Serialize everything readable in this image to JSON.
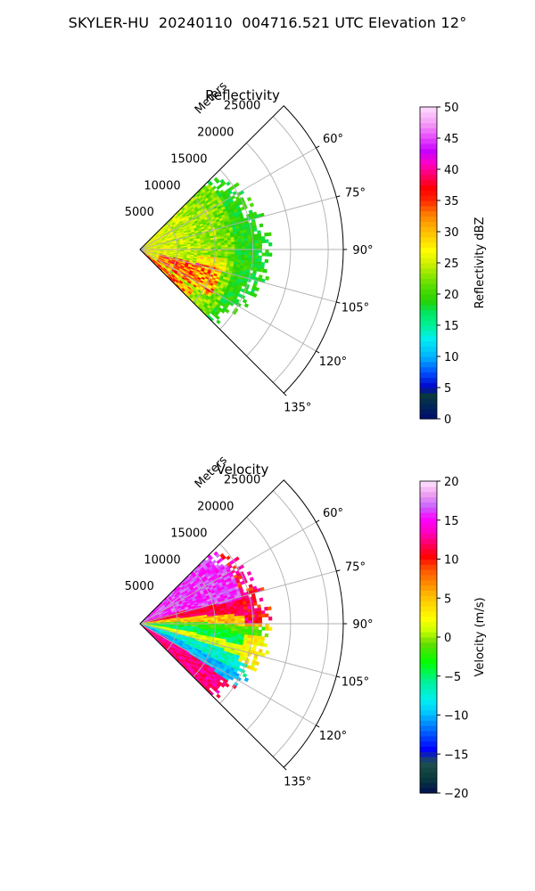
{
  "figure": {
    "title": "SKYLER-HU  20240110  004716.521 UTC Elevation 12°"
  },
  "chart_data": [
    {
      "type": "heatmap",
      "subtype": "polar-sector-radar",
      "title": "Reflectivity",
      "range_axis_label": "Meters",
      "range_ticks": [
        5000,
        10000,
        15000,
        20000,
        25000
      ],
      "range_tick_labels": [
        "5000",
        "10000",
        "15000",
        "20000",
        "25000"
      ],
      "range_max": 27000,
      "azimuth_range_deg": [
        45,
        135
      ],
      "azimuth_ticks": [
        60,
        75,
        90,
        105,
        120,
        135
      ],
      "azimuth_tick_labels": [
        "60°",
        "75°",
        "90°",
        "105°",
        "120°",
        "135°"
      ],
      "data_extent_m": 17000,
      "grid": true,
      "colorbar": {
        "label": "Reflectivity dBZ",
        "min": 0,
        "max": 50,
        "ticks": [
          0,
          5,
          10,
          15,
          20,
          25,
          30,
          35,
          40,
          45,
          50
        ],
        "tick_labels": [
          "0",
          "5",
          "10",
          "15",
          "20",
          "25",
          "30",
          "35",
          "40",
          "45",
          "50"
        ],
        "colormap": "pyart_NWSRef"
      },
      "field_summary": {
        "dominant_value_range": [
          20,
          30
        ],
        "core_value_range": [
          33,
          40
        ],
        "core_azimuth_deg": [
          105,
          122
        ],
        "outer_fringe_value": 20
      }
    },
    {
      "type": "heatmap",
      "subtype": "polar-sector-radar",
      "title": "Velocity",
      "range_axis_label": "Meters",
      "range_ticks": [
        5000,
        10000,
        15000,
        20000,
        25000
      ],
      "range_tick_labels": [
        "5000",
        "10000",
        "15000",
        "20000",
        "25000"
      ],
      "range_max": 27000,
      "azimuth_range_deg": [
        45,
        135
      ],
      "azimuth_ticks": [
        60,
        75,
        90,
        105,
        120,
        135
      ],
      "azimuth_tick_labels": [
        "60°",
        "75°",
        "90°",
        "105°",
        "120°",
        "135°"
      ],
      "data_extent_m": 17000,
      "grid": true,
      "colorbar": {
        "label": "Velocity (m/s)",
        "min": -20,
        "max": 20,
        "ticks": [
          -20,
          -15,
          -10,
          -5,
          0,
          5,
          10,
          15,
          20
        ],
        "tick_labels": [
          "−20",
          "−15",
          "−10",
          "−5",
          "0",
          "5",
          "10",
          "15",
          "20"
        ],
        "colormap": "pyart_BuDRd18"
      },
      "field_summary": {
        "north_sector_value_range": [
          10,
          18
        ],
        "center_band_value_range": [
          -8,
          0
        ],
        "south_sector_value_range": [
          -12,
          -9
        ],
        "southern_edge_value_range": [
          8,
          14
        ]
      }
    }
  ]
}
